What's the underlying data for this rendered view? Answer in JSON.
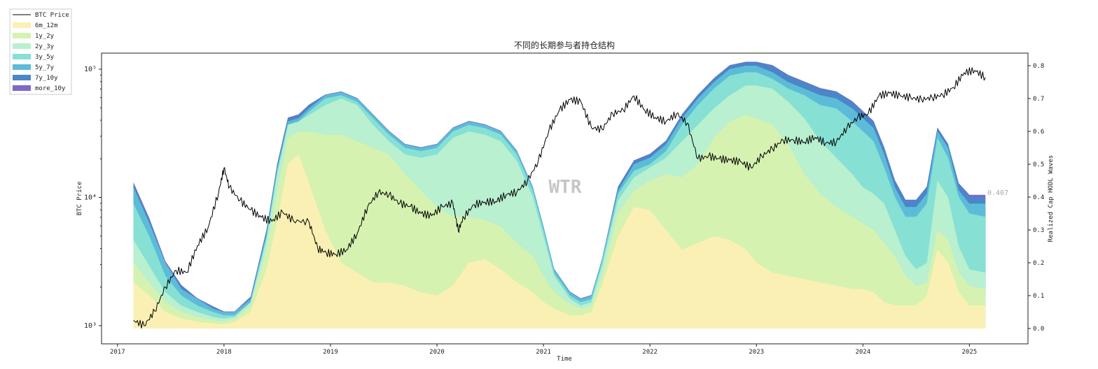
{
  "chart_data": {
    "type": "area",
    "title": "不同的长期参与者持仓结构",
    "xlabel": "Time",
    "ylabel_left": "BTC Price",
    "ylabel_right": "Realized Cap HODL Waves",
    "x_ticks": [
      "2017",
      "2018",
      "2019",
      "2020",
      "2021",
      "2022",
      "2023",
      "2024",
      "2025"
    ],
    "y_left_scale": "log",
    "y_left_ticks": [
      "10³",
      "10⁴",
      "10⁵"
    ],
    "y_left_range": [
      1000,
      100000
    ],
    "y_right_ticks": [
      "0.0",
      "0.1",
      "0.2",
      "0.3",
      "0.4",
      "0.5",
      "0.6",
      "0.7",
      "0.8"
    ],
    "y_right_range": [
      0,
      0.8
    ],
    "grid": false,
    "legend_position": "top-left-outside",
    "watermark": "WTR",
    "end_label": "0.407",
    "colors": {
      "price": "#000000",
      "6m_12m": "#fbf0b4",
      "1y_2y": "#d6f2b0",
      "2y_3y": "#b8f0d0",
      "3y_5y": "#86e0d4",
      "5y_7y": "#5cbcd8",
      "7y_10y": "#4b86c8",
      "more_10y": "#7b6ac8"
    },
    "x": [
      2017.15,
      2017.3,
      2017.45,
      2017.6,
      2017.75,
      2017.9,
      2018.0,
      2018.1,
      2018.25,
      2018.4,
      2018.5,
      2018.6,
      2018.7,
      2018.8,
      2018.95,
      2019.1,
      2019.25,
      2019.4,
      2019.55,
      2019.7,
      2019.85,
      2020.0,
      2020.15,
      2020.3,
      2020.45,
      2020.6,
      2020.75,
      2020.9,
      2021.0,
      2021.1,
      2021.25,
      2021.35,
      2021.45,
      2021.55,
      2021.7,
      2021.85,
      2022.0,
      2022.15,
      2022.3,
      2022.45,
      2022.6,
      2022.75,
      2022.9,
      2023.0,
      2023.15,
      2023.3,
      2023.45,
      2023.6,
      2023.75,
      2023.9,
      2024.0,
      2024.1,
      2024.2,
      2024.3,
      2024.4,
      2024.5,
      2024.6,
      2024.7,
      2024.8,
      2024.9,
      2025.0,
      2025.15
    ],
    "series": [
      {
        "name": "6m_12m",
        "values": [
          0.14,
          0.1,
          0.05,
          0.03,
          0.02,
          0.015,
          0.013,
          0.02,
          0.05,
          0.18,
          0.33,
          0.5,
          0.53,
          0.44,
          0.3,
          0.2,
          0.17,
          0.14,
          0.14,
          0.13,
          0.11,
          0.1,
          0.13,
          0.2,
          0.21,
          0.18,
          0.14,
          0.11,
          0.08,
          0.06,
          0.04,
          0.04,
          0.05,
          0.13,
          0.28,
          0.37,
          0.36,
          0.3,
          0.24,
          0.26,
          0.28,
          0.27,
          0.24,
          0.2,
          0.17,
          0.16,
          0.15,
          0.14,
          0.13,
          0.12,
          0.12,
          0.11,
          0.08,
          0.07,
          0.07,
          0.07,
          0.1,
          0.24,
          0.2,
          0.11,
          0.07,
          0.07
        ]
      },
      {
        "name": "1y_2y",
        "values": [
          0.2,
          0.14,
          0.08,
          0.05,
          0.035,
          0.025,
          0.022,
          0.03,
          0.07,
          0.24,
          0.42,
          0.58,
          0.6,
          0.6,
          0.59,
          0.59,
          0.57,
          0.55,
          0.53,
          0.47,
          0.42,
          0.37,
          0.34,
          0.34,
          0.33,
          0.31,
          0.26,
          0.22,
          0.16,
          0.11,
          0.075,
          0.06,
          0.07,
          0.16,
          0.35,
          0.42,
          0.45,
          0.47,
          0.46,
          0.5,
          0.58,
          0.63,
          0.65,
          0.64,
          0.62,
          0.56,
          0.47,
          0.41,
          0.37,
          0.34,
          0.32,
          0.3,
          0.26,
          0.22,
          0.16,
          0.13,
          0.14,
          0.3,
          0.27,
          0.17,
          0.13,
          0.12
        ]
      },
      {
        "name": "2y_3y",
        "values": [
          0.27,
          0.19,
          0.11,
          0.07,
          0.05,
          0.035,
          0.03,
          0.035,
          0.08,
          0.27,
          0.47,
          0.62,
          0.63,
          0.65,
          0.68,
          0.7,
          0.68,
          0.62,
          0.57,
          0.53,
          0.52,
          0.53,
          0.58,
          0.6,
          0.59,
          0.57,
          0.51,
          0.4,
          0.28,
          0.16,
          0.09,
          0.07,
          0.08,
          0.19,
          0.39,
          0.46,
          0.49,
          0.52,
          0.57,
          0.62,
          0.67,
          0.71,
          0.74,
          0.74,
          0.73,
          0.69,
          0.64,
          0.57,
          0.52,
          0.47,
          0.43,
          0.41,
          0.38,
          0.3,
          0.22,
          0.18,
          0.2,
          0.45,
          0.4,
          0.25,
          0.18,
          0.17
        ]
      },
      {
        "name": "3y_5y",
        "values": [
          0.38,
          0.28,
          0.16,
          0.1,
          0.07,
          0.05,
          0.04,
          0.04,
          0.08,
          0.28,
          0.48,
          0.62,
          0.63,
          0.66,
          0.7,
          0.71,
          0.69,
          0.64,
          0.59,
          0.55,
          0.54,
          0.55,
          0.6,
          0.62,
          0.61,
          0.59,
          0.53,
          0.42,
          0.3,
          0.17,
          0.1,
          0.08,
          0.09,
          0.2,
          0.41,
          0.48,
          0.5,
          0.54,
          0.62,
          0.68,
          0.73,
          0.77,
          0.78,
          0.78,
          0.76,
          0.73,
          0.71,
          0.68,
          0.67,
          0.63,
          0.6,
          0.57,
          0.49,
          0.4,
          0.34,
          0.34,
          0.38,
          0.58,
          0.52,
          0.4,
          0.35,
          0.34
        ]
      },
      {
        "name": "5y_7y",
        "values": [
          0.43,
          0.32,
          0.2,
          0.12,
          0.09,
          0.06,
          0.05,
          0.05,
          0.09,
          0.29,
          0.49,
          0.63,
          0.64,
          0.67,
          0.71,
          0.72,
          0.7,
          0.65,
          0.6,
          0.56,
          0.55,
          0.56,
          0.61,
          0.63,
          0.62,
          0.6,
          0.54,
          0.43,
          0.31,
          0.18,
          0.11,
          0.09,
          0.1,
          0.21,
          0.42,
          0.5,
          0.52,
          0.56,
          0.64,
          0.7,
          0.75,
          0.79,
          0.8,
          0.8,
          0.78,
          0.75,
          0.73,
          0.71,
          0.7,
          0.67,
          0.64,
          0.61,
          0.53,
          0.43,
          0.37,
          0.37,
          0.41,
          0.6,
          0.55,
          0.42,
          0.38,
          0.38
        ]
      },
      {
        "name": "7y_10y",
        "values": [
          0.44,
          0.33,
          0.2,
          0.13,
          0.09,
          0.065,
          0.05,
          0.05,
          0.095,
          0.3,
          0.5,
          0.64,
          0.65,
          0.68,
          0.71,
          0.72,
          0.7,
          0.65,
          0.6,
          0.56,
          0.55,
          0.56,
          0.61,
          0.63,
          0.62,
          0.6,
          0.54,
          0.43,
          0.31,
          0.18,
          0.11,
          0.09,
          0.1,
          0.21,
          0.43,
          0.51,
          0.53,
          0.57,
          0.65,
          0.71,
          0.76,
          0.8,
          0.81,
          0.81,
          0.8,
          0.77,
          0.75,
          0.73,
          0.72,
          0.69,
          0.66,
          0.63,
          0.55,
          0.45,
          0.39,
          0.39,
          0.43,
          0.61,
          0.56,
          0.44,
          0.4,
          0.4
        ]
      },
      {
        "name": "more_10y",
        "values": [
          0.445,
          0.335,
          0.205,
          0.132,
          0.092,
          0.067,
          0.052,
          0.052,
          0.097,
          0.302,
          0.502,
          0.642,
          0.652,
          0.682,
          0.712,
          0.722,
          0.702,
          0.652,
          0.602,
          0.562,
          0.552,
          0.562,
          0.612,
          0.632,
          0.622,
          0.602,
          0.542,
          0.432,
          0.312,
          0.182,
          0.112,
          0.092,
          0.102,
          0.212,
          0.432,
          0.512,
          0.532,
          0.572,
          0.652,
          0.712,
          0.762,
          0.802,
          0.812,
          0.812,
          0.802,
          0.772,
          0.752,
          0.732,
          0.722,
          0.692,
          0.662,
          0.632,
          0.552,
          0.452,
          0.392,
          0.392,
          0.432,
          0.612,
          0.562,
          0.442,
          0.407,
          0.407
        ]
      }
    ],
    "price": {
      "name": "BTC Price",
      "x": [
        2017.15,
        2017.25,
        2017.35,
        2017.45,
        2017.55,
        2017.65,
        2017.75,
        2017.85,
        2017.95,
        2018.0,
        2018.05,
        2018.15,
        2018.25,
        2018.35,
        2018.45,
        2018.55,
        2018.65,
        2018.8,
        2018.88,
        2018.96,
        2019.05,
        2019.15,
        2019.25,
        2019.35,
        2019.45,
        2019.55,
        2019.65,
        2019.75,
        2019.85,
        2019.95,
        2020.05,
        2020.15,
        2020.2,
        2020.25,
        2020.35,
        2020.45,
        2020.55,
        2020.65,
        2020.75,
        2020.85,
        2020.95,
        2021.05,
        2021.15,
        2021.25,
        2021.35,
        2021.45,
        2021.55,
        2021.65,
        2021.75,
        2021.85,
        2021.95,
        2022.05,
        2022.15,
        2022.25,
        2022.35,
        2022.45,
        2022.55,
        2022.65,
        2022.75,
        2022.85,
        2022.95,
        2023.05,
        2023.15,
        2023.25,
        2023.35,
        2023.45,
        2023.55,
        2023.65,
        2023.75,
        2023.85,
        2023.95,
        2024.05,
        2024.15,
        2024.25,
        2024.35,
        2024.45,
        2024.55,
        2024.65,
        2024.75,
        2024.85,
        2024.95,
        2025.05,
        2025.15
      ],
      "values": [
        1100,
        1000,
        1300,
        2000,
        2700,
        2600,
        4200,
        5800,
        11000,
        17000,
        12000,
        9500,
        8000,
        7000,
        6500,
        7700,
        6600,
        6400,
        4000,
        3700,
        3600,
        3900,
        5200,
        8500,
        11000,
        10500,
        9000,
        8500,
        7500,
        7200,
        8500,
        9000,
        5500,
        7000,
        8800,
        9200,
        9300,
        10500,
        11000,
        13500,
        19000,
        33000,
        48000,
        58000,
        56000,
        35000,
        34000,
        45000,
        48000,
        62000,
        48000,
        42000,
        39000,
        45000,
        38000,
        20000,
        21000,
        20000,
        19500,
        19000,
        17000,
        21000,
        24000,
        28000,
        28000,
        27000,
        29500,
        26500,
        27000,
        35000,
        42000,
        45000,
        62000,
        65000,
        62000,
        60000,
        58000,
        60000,
        63000,
        72000,
        94000,
        98000,
        86000
      ]
    }
  }
}
